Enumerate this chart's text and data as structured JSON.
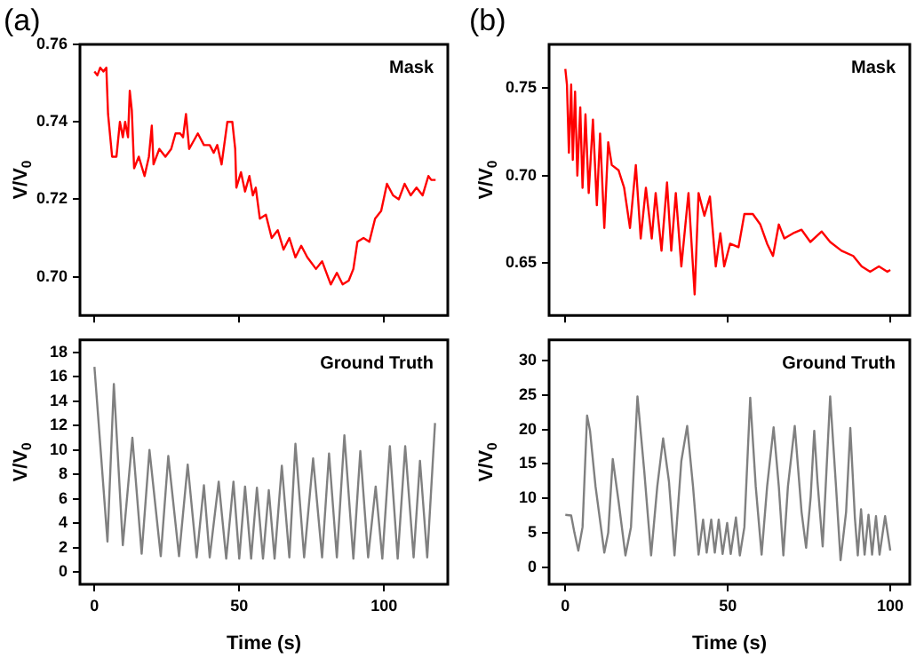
{
  "chart_data": [
    {
      "type": "line",
      "title": "(a)",
      "ylabel": "V/V$_{0}$",
      "annotations": [
        "Mask"
      ],
      "tick_labels": "y",
      "grid": false,
      "xlim": [
        -5,
        122
      ],
      "xticks": [
        0,
        50,
        100
      ],
      "ylim": [
        0.69,
        0.76
      ],
      "yticks": [
        {
          "value": 0.7,
          "label": "0.70"
        },
        0.72,
        0.74,
        0.76
      ],
      "x": [
        0,
        1,
        2,
        3.1,
        4.1,
        4.7,
        6.1,
        7.6,
        8.8,
        9.8,
        10.6,
        11.6,
        12.2,
        12.9,
        13.7,
        15.3,
        17.3,
        18.8,
        19.8,
        20.4,
        22.4,
        24.5,
        26.5,
        28,
        29.6,
        30.6,
        31.6,
        32.7,
        35.7,
        37.8,
        39.8,
        41.2,
        42.4,
        43.9,
        45.9,
        47.6,
        48.6,
        49,
        50.6,
        52,
        53.5,
        54.7,
        55.7,
        57.1,
        59.2,
        61.2,
        63.3,
        65.3,
        67.3,
        69.4,
        71.4,
        73.5,
        76.5,
        78.6,
        81.6,
        83.7,
        85.7,
        87.8,
        89.4,
        90.8,
        92.9,
        94.9,
        96.9,
        99,
        101,
        103.1,
        105.1,
        107.1,
        109.2,
        111.2,
        113.3,
        115.3,
        116.3,
        117.8
      ],
      "series": [
        {
          "color": "#ff0000",
          "values": [
            0.753,
            0.752,
            0.754,
            0.753,
            0.754,
            0.742,
            0.731,
            0.731,
            0.74,
            0.736,
            0.74,
            0.736,
            0.748,
            0.743,
            0.728,
            0.731,
            0.726,
            0.731,
            0.739,
            0.729,
            0.733,
            0.731,
            0.733,
            0.737,
            0.737,
            0.736,
            0.742,
            0.733,
            0.737,
            0.734,
            0.734,
            0.732,
            0.734,
            0.729,
            0.74,
            0.74,
            0.733,
            0.723,
            0.727,
            0.722,
            0.726,
            0.721,
            0.723,
            0.715,
            0.716,
            0.71,
            0.712,
            0.707,
            0.71,
            0.705,
            0.708,
            0.705,
            0.702,
            0.704,
            0.698,
            0.701,
            0.698,
            0.699,
            0.702,
            0.709,
            0.71,
            0.709,
            0.715,
            0.717,
            0.724,
            0.721,
            0.72,
            0.724,
            0.721,
            0.723,
            0.721,
            0.726,
            0.725,
            0.725
          ]
        }
      ]
    },
    {
      "type": "line",
      "ylabel": "V/V$_{0}$",
      "xlabel": "Time (s)",
      "annotations": [
        "Ground Truth"
      ],
      "grid": false,
      "xlim": [
        -5,
        122
      ],
      "xticks": [
        0,
        50,
        100
      ],
      "ylim": [
        -1,
        19
      ],
      "yticks": [
        0,
        2,
        4,
        6,
        8,
        10,
        12,
        14,
        16,
        18
      ],
      "x": [
        0,
        4.5,
        6.7,
        9.8,
        13.1,
        16.3,
        19,
        22.9,
        25.5,
        29.2,
        32.2,
        35.3,
        37.8,
        39.8,
        42.9,
        45.5,
        48,
        50,
        52,
        54.1,
        56.1,
        58.2,
        60.2,
        62.2,
        64.7,
        67.3,
        69.4,
        72.4,
        75.5,
        78.6,
        81,
        83.7,
        86.3,
        89.4,
        91.8,
        94.5,
        97.1,
        99.4,
        102,
        104.7,
        107.3,
        110.2,
        112.4,
        114.9,
        117.6
      ],
      "series": [
        {
          "color": "#808080",
          "values": [
            16.8,
            2.5,
            15.4,
            2.2,
            11,
            1.5,
            10,
            1.3,
            9.5,
            1.3,
            8.8,
            1.2,
            7.1,
            1.2,
            7.4,
            1.1,
            7.4,
            1.1,
            7,
            1.1,
            6.9,
            1.1,
            6.7,
            1.1,
            8.7,
            1.2,
            10.5,
            1.2,
            9.3,
            1.2,
            9.7,
            1.2,
            11.2,
            1.1,
            9.9,
            1.2,
            7,
            1.1,
            10.3,
            1.1,
            10.3,
            1.2,
            9.1,
            1.2,
            12.2
          ]
        }
      ]
    },
    {
      "type": "line",
      "title": "(b)",
      "ylabel": "V/V$_{0}$",
      "annotations": [
        "Mask"
      ],
      "tick_labels": "y",
      "grid": false,
      "xlim": [
        -5,
        106
      ],
      "xticks": [
        0,
        50,
        100
      ],
      "ylim": [
        0.62,
        0.775
      ],
      "yticks": [
        0.65,
        {
          "value": 0.7,
          "label": "0.70"
        },
        0.75
      ],
      "x": [
        0,
        0.5,
        1.1,
        1.8,
        2.3,
        3,
        3.7,
        4.6,
        5.3,
        6.2,
        7.2,
        8.5,
        9.7,
        10.7,
        12,
        13.2,
        14.3,
        16.4,
        18.1,
        19.9,
        21.7,
        23.2,
        24.8,
        26.6,
        27.8,
        29.6,
        31.3,
        32.6,
        34,
        35.7,
        37.9,
        39.8,
        41,
        42.8,
        44.5,
        46.3,
        47.7,
        48.9,
        50.7,
        53.3,
        55.1,
        57.7,
        60,
        62.1,
        63.9,
        65.7,
        67.4,
        70.1,
        72.7,
        75.4,
        78.9,
        81.5,
        85,
        88.6,
        91.2,
        93.8,
        96.5,
        99.1,
        100
      ],
      "series": [
        {
          "color": "#ff0000",
          "values": [
            0.761,
            0.752,
            0.713,
            0.752,
            0.709,
            0.748,
            0.7,
            0.739,
            0.693,
            0.735,
            0.69,
            0.732,
            0.683,
            0.724,
            0.67,
            0.719,
            0.706,
            0.703,
            0.693,
            0.67,
            0.706,
            0.664,
            0.693,
            0.664,
            0.69,
            0.657,
            0.696,
            0.657,
            0.69,
            0.648,
            0.69,
            0.632,
            0.69,
            0.677,
            0.688,
            0.648,
            0.667,
            0.648,
            0.661,
            0.659,
            0.678,
            0.678,
            0.672,
            0.661,
            0.654,
            0.672,
            0.664,
            0.667,
            0.669,
            0.662,
            0.668,
            0.662,
            0.657,
            0.654,
            0.648,
            0.645,
            0.648,
            0.645,
            0.646
          ]
        }
      ]
    },
    {
      "type": "line",
      "ylabel": "V/V$_{0}$",
      "xlabel": "Time (s)",
      "annotations": [
        "Ground Truth"
      ],
      "grid": false,
      "xlim": [
        -5,
        106
      ],
      "xticks": [
        0,
        50,
        100
      ],
      "ylim": [
        -2.5,
        33
      ],
      "yticks": [
        0,
        5,
        10,
        15,
        20,
        25,
        30
      ],
      "x": [
        0,
        1.8,
        2.8,
        4,
        5.3,
        6.7,
        7.6,
        9.3,
        12,
        13.2,
        14.6,
        16.4,
        18.5,
        20.2,
        22.2,
        24.3,
        26.4,
        28.3,
        30.1,
        31.9,
        33.6,
        35.7,
        37.5,
        39.3,
        41,
        42.4,
        43.5,
        44.9,
        46,
        47.2,
        48.4,
        49.8,
        50.9,
        52.5,
        53.7,
        55.1,
        56.9,
        58.6,
        60.4,
        62.1,
        64.1,
        65.7,
        67.1,
        68.5,
        70.6,
        72.7,
        74.1,
        75.5,
        76.6,
        77.6,
        79.2,
        81.5,
        83.3,
        84.7,
        86.4,
        87.7,
        89.1,
        90,
        91,
        92.1,
        93.3,
        94.4,
        95.6,
        96.7,
        98.4,
        100
      ],
      "series": [
        {
          "color": "#808080",
          "values": [
            7.6,
            7.5,
            5,
            2.4,
            5.8,
            22,
            19.8,
            11.7,
            2.1,
            5,
            15.7,
            9.5,
            1.7,
            5.8,
            24.8,
            13.9,
            1.7,
            11.7,
            18.7,
            12.4,
            1.7,
            15.4,
            20.5,
            11.7,
            1.8,
            6.9,
            2.1,
            6.9,
            2.1,
            6.9,
            1.9,
            6.4,
            1.9,
            7.2,
            1.7,
            5.8,
            24.6,
            11.7,
            1.8,
            11.7,
            20.3,
            11.7,
            1.7,
            11.7,
            20.5,
            8,
            2.8,
            10.2,
            19.8,
            12.4,
            3,
            24.8,
            11.7,
            1,
            8,
            20.2,
            7.2,
            1.7,
            8.4,
            1.8,
            7.6,
            1.8,
            7.4,
            1.8,
            7.4,
            2.4
          ]
        }
      ]
    }
  ]
}
